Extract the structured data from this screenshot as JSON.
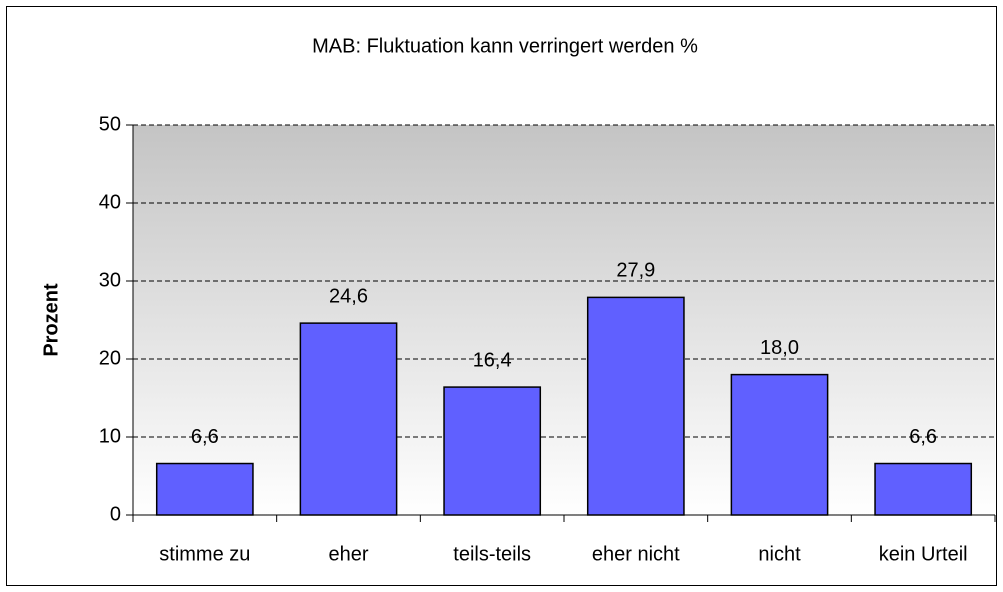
{
  "chart_data": {
    "type": "bar",
    "title": "MAB: Fluktuation kann verringert werden %",
    "y_label": "Prozent",
    "categories": [
      "stimme zu",
      "eher",
      "teils-teils",
      "eher nicht",
      "nicht",
      "kein Urteil"
    ],
    "values": [
      6.6,
      24.6,
      16.4,
      27.9,
      18.0,
      6.6
    ],
    "value_labels": [
      "6,6",
      "24,6",
      "16,4",
      "27,9",
      "18,0",
      "6,6"
    ],
    "color": "#6060ff",
    "ylim": [
      0,
      50
    ],
    "yticks": [
      0,
      10,
      20,
      30,
      40,
      50
    ],
    "grid": true
  }
}
